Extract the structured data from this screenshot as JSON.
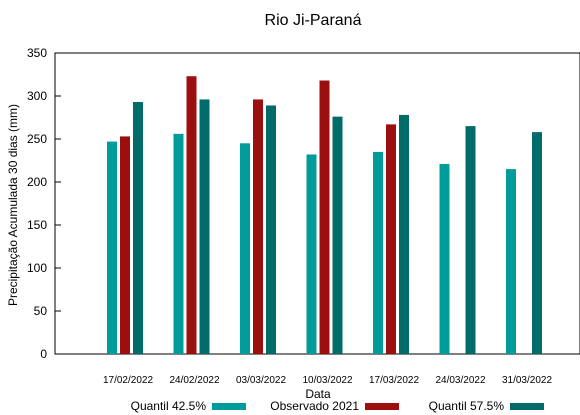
{
  "chart_data": {
    "type": "bar",
    "title": "Rio Ji-Paraná",
    "xlabel": "Data",
    "ylabel": "Precipitação Acumulada 30 dias (mm)",
    "ylim": [
      0,
      350
    ],
    "yticks": [
      0,
      50,
      100,
      150,
      200,
      250,
      300,
      350
    ],
    "grid": false,
    "legend_position": "bottom",
    "categories": [
      "17/02/2022",
      "24/02/2022",
      "03/03/2022",
      "10/03/2022",
      "17/03/2022",
      "24/03/2022",
      "31/03/2022"
    ],
    "series": [
      {
        "name": "Quantil 42.5%",
        "color": "#009b9b",
        "values": [
          247,
          256,
          245,
          232,
          235,
          221,
          215
        ]
      },
      {
        "name": "Observado 2021",
        "color": "#9b0f0f",
        "values": [
          253,
          323,
          296,
          318,
          267,
          null,
          null
        ]
      },
      {
        "name": "Quantil 57.5%",
        "color": "#006b68",
        "values": [
          293,
          296,
          289,
          276,
          278,
          265,
          258
        ]
      }
    ]
  }
}
